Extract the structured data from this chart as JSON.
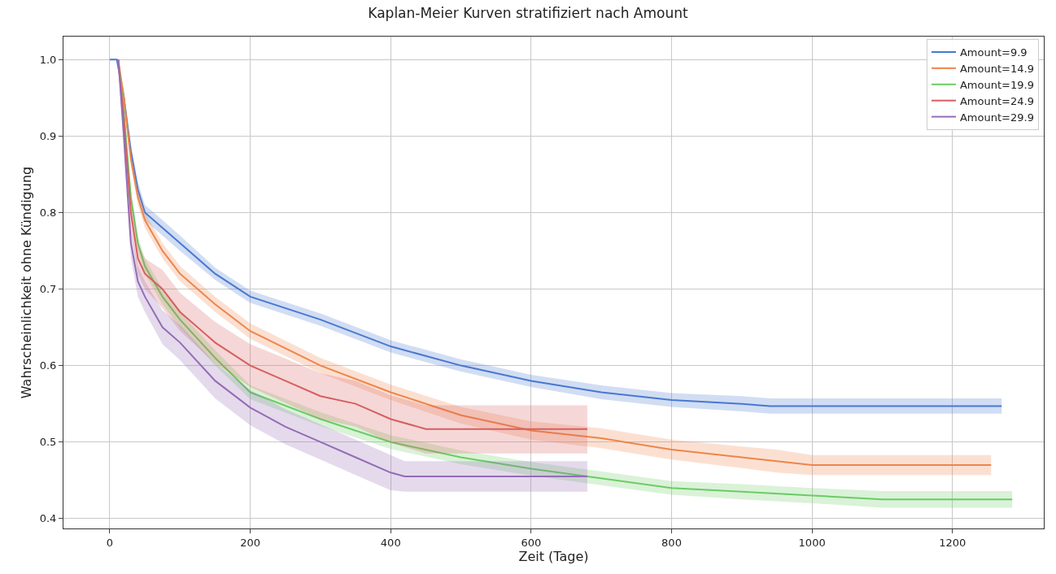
{
  "chart_data": {
    "type": "line",
    "title": "Kaplan-Meier Kurven stratifiziert nach Amount",
    "xlabel": "Zeit (Tage)",
    "ylabel": "Wahrscheinlichkeit ohne Kündigung",
    "xlim": [
      -66,
      1330
    ],
    "ylim": [
      0.387,
      1.03
    ],
    "xticks": [
      0,
      200,
      400,
      600,
      800,
      1000,
      1200
    ],
    "yticks": [
      0.4,
      0.5,
      0.6,
      0.7,
      0.8,
      0.9,
      {
        "value": 1.0,
        "label": "1.0"
      }
    ],
    "grid": true,
    "legend": "top right",
    "line_style": "solid",
    "series": [
      {
        "name": "Amount=9.9",
        "color": "#4878d0",
        "x": [
          0,
          10,
          20,
          30,
          40,
          50,
          75,
          100,
          150,
          200,
          300,
          400,
          500,
          600,
          700,
          800,
          900,
          940,
          1270
        ],
        "values": [
          1,
          1,
          0.95,
          0.88,
          0.83,
          0.8,
          0.78,
          0.76,
          0.72,
          0.69,
          0.66,
          0.625,
          0.6,
          0.58,
          0.565,
          0.555,
          0.55,
          0.547,
          0.547
        ],
        "lower": [
          1,
          1,
          0.94,
          0.87,
          0.82,
          0.79,
          0.77,
          0.75,
          0.712,
          0.682,
          0.652,
          0.617,
          0.592,
          0.572,
          0.556,
          0.546,
          0.54,
          0.537,
          0.537
        ],
        "upper": [
          1,
          1,
          0.96,
          0.89,
          0.84,
          0.81,
          0.79,
          0.77,
          0.728,
          0.698,
          0.668,
          0.633,
          0.608,
          0.588,
          0.574,
          0.564,
          0.56,
          0.557,
          0.557
        ]
      },
      {
        "name": "Amount=14.9",
        "color": "#ee854a",
        "x": [
          12,
          20,
          30,
          40,
          50,
          75,
          100,
          150,
          200,
          300,
          400,
          500,
          600,
          700,
          800,
          900,
          950,
          1000,
          1255
        ],
        "values": [
          1,
          0.95,
          0.87,
          0.82,
          0.79,
          0.75,
          0.72,
          0.68,
          0.645,
          0.6,
          0.565,
          0.535,
          0.515,
          0.505,
          0.49,
          0.48,
          0.475,
          0.47,
          0.47
        ],
        "lower": [
          1,
          0.94,
          0.86,
          0.81,
          0.78,
          0.74,
          0.71,
          0.67,
          0.635,
          0.59,
          0.555,
          0.524,
          0.503,
          0.492,
          0.477,
          0.466,
          0.46,
          0.457,
          0.457
        ],
        "upper": [
          1,
          0.96,
          0.88,
          0.83,
          0.8,
          0.76,
          0.73,
          0.69,
          0.655,
          0.61,
          0.575,
          0.546,
          0.527,
          0.518,
          0.503,
          0.494,
          0.49,
          0.483,
          0.483
        ]
      },
      {
        "name": "Amount=19.9",
        "color": "#6acc64",
        "x": [
          12,
          20,
          30,
          40,
          50,
          75,
          100,
          150,
          200,
          300,
          400,
          500,
          600,
          680,
          800,
          900,
          1000,
          1100,
          1285
        ],
        "values": [
          1,
          0.93,
          0.82,
          0.76,
          0.73,
          0.69,
          0.66,
          0.61,
          0.565,
          0.53,
          0.5,
          0.48,
          0.465,
          0.455,
          0.44,
          0.435,
          0.43,
          0.425,
          0.425
        ],
        "lower": [
          1,
          0.92,
          0.81,
          0.75,
          0.72,
          0.68,
          0.65,
          0.6,
          0.556,
          0.521,
          0.491,
          0.471,
          0.456,
          0.446,
          0.431,
          0.425,
          0.42,
          0.414,
          0.414
        ],
        "upper": [
          1,
          0.94,
          0.83,
          0.77,
          0.74,
          0.7,
          0.67,
          0.62,
          0.574,
          0.539,
          0.509,
          0.489,
          0.474,
          0.464,
          0.449,
          0.445,
          0.44,
          0.436,
          0.436
        ]
      },
      {
        "name": "Amount=24.9",
        "color": "#d65f5f",
        "x": [
          12,
          20,
          30,
          40,
          50,
          75,
          100,
          150,
          200,
          250,
          300,
          350,
          400,
          450,
          680
        ],
        "values": [
          1,
          0.92,
          0.8,
          0.74,
          0.72,
          0.7,
          0.67,
          0.63,
          0.6,
          0.58,
          0.56,
          0.55,
          0.53,
          0.517,
          0.517
        ],
        "lower": [
          1,
          0.9,
          0.78,
          0.72,
          0.7,
          0.675,
          0.645,
          0.603,
          0.572,
          0.551,
          0.53,
          0.52,
          0.499,
          0.485,
          0.485
        ],
        "upper": [
          1,
          0.94,
          0.82,
          0.76,
          0.74,
          0.725,
          0.695,
          0.657,
          0.628,
          0.609,
          0.59,
          0.58,
          0.561,
          0.548,
          0.548
        ]
      },
      {
        "name": "Amount=29.9",
        "color": "#956cb4",
        "x": [
          12,
          20,
          30,
          40,
          50,
          75,
          100,
          150,
          200,
          250,
          300,
          350,
          400,
          420,
          680
        ],
        "values": [
          1,
          0.9,
          0.76,
          0.71,
          0.69,
          0.65,
          0.63,
          0.58,
          0.545,
          0.52,
          0.5,
          0.48,
          0.46,
          0.455,
          0.455
        ],
        "lower": [
          1,
          0.88,
          0.74,
          0.69,
          0.67,
          0.628,
          0.607,
          0.557,
          0.522,
          0.497,
          0.477,
          0.457,
          0.437,
          0.435,
          0.435
        ],
        "upper": [
          1,
          0.92,
          0.78,
          0.73,
          0.71,
          0.672,
          0.653,
          0.603,
          0.568,
          0.543,
          0.523,
          0.503,
          0.483,
          0.475,
          0.475
        ]
      }
    ]
  }
}
